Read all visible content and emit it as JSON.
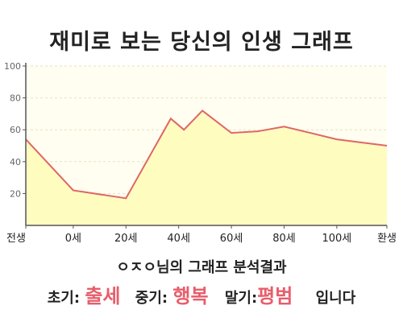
{
  "chart_data": {
    "type": "area",
    "title": "재미로 보는 당신의 인생 그래프",
    "categories": [
      "전생",
      "0세",
      "20세",
      "40세",
      "60세",
      "80세",
      "100세",
      "환생"
    ],
    "x": [
      -18,
      0,
      20,
      37,
      42,
      49,
      60,
      70,
      80,
      100,
      119
    ],
    "values": [
      54,
      22,
      17,
      67,
      60,
      72,
      58,
      59,
      62,
      54,
      50
    ],
    "ylim": [
      0,
      100
    ],
    "yticks": [
      20,
      40,
      60,
      80,
      100
    ],
    "xlabel": "",
    "ylabel": "",
    "grid": true,
    "colors": {
      "line": "#e06666",
      "fill": "#fffcc0",
      "plot_bg": "#fffef0",
      "grid": "#e3e3c8"
    }
  },
  "subtitle": "ㅇㅈㅇ님의 그래프 분석결과",
  "summary": {
    "early_label": "초기:",
    "early_value": "출세",
    "mid_label": "중기:",
    "mid_value": "행복",
    "late_label": "말기:",
    "late_value": "평범",
    "ending": "입니다"
  }
}
